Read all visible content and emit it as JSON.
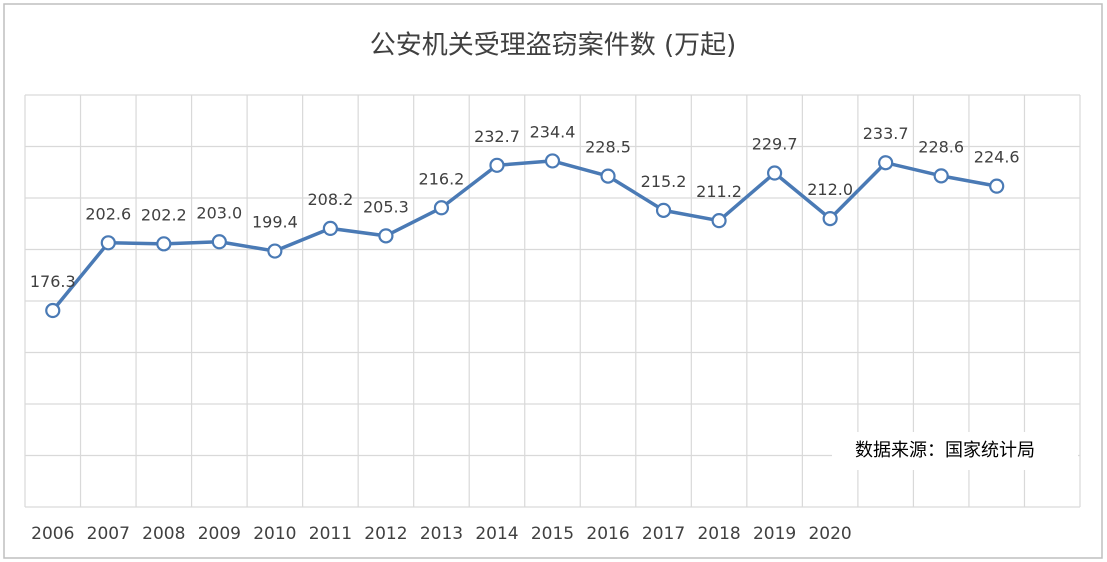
{
  "chart_data": {
    "type": "line",
    "title": "公安机关受理盗窃案件数 (万起)",
    "annotation": "数据来源：国家统计局",
    "categories": [
      "2006",
      "2007",
      "2008",
      "2009",
      "2010",
      "2011",
      "2012",
      "2013",
      "2014",
      "2015",
      "2016",
      "2017",
      "2018",
      "2019",
      "2020",
      null,
      null,
      null,
      null
    ],
    "series": [
      {
        "name": "盗窃案件数",
        "color": "#4a7ab5",
        "values": [
          176.3,
          202.6,
          202.2,
          203.0,
          199.4,
          208.2,
          205.3,
          216.2,
          232.7,
          234.4,
          228.5,
          215.2,
          211.2,
          229.7,
          212.0,
          233.7,
          228.6,
          224.6,
          null
        ],
        "value_labels": [
          "176.3",
          "202.6",
          "202.2",
          "203.0",
          "199.4",
          "208.2",
          "205.3",
          "216.2",
          "232.7",
          "234.4",
          "228.5",
          "215.2",
          "211.2",
          "229.7",
          "212.0",
          "233.7",
          "228.6",
          "224.6",
          null
        ]
      }
    ],
    "ylim": [
      100,
      260
    ],
    "yticks": [
      100,
      120,
      140,
      160,
      180,
      200,
      220,
      240,
      260
    ],
    "ytick_labels": false,
    "grid": true
  }
}
